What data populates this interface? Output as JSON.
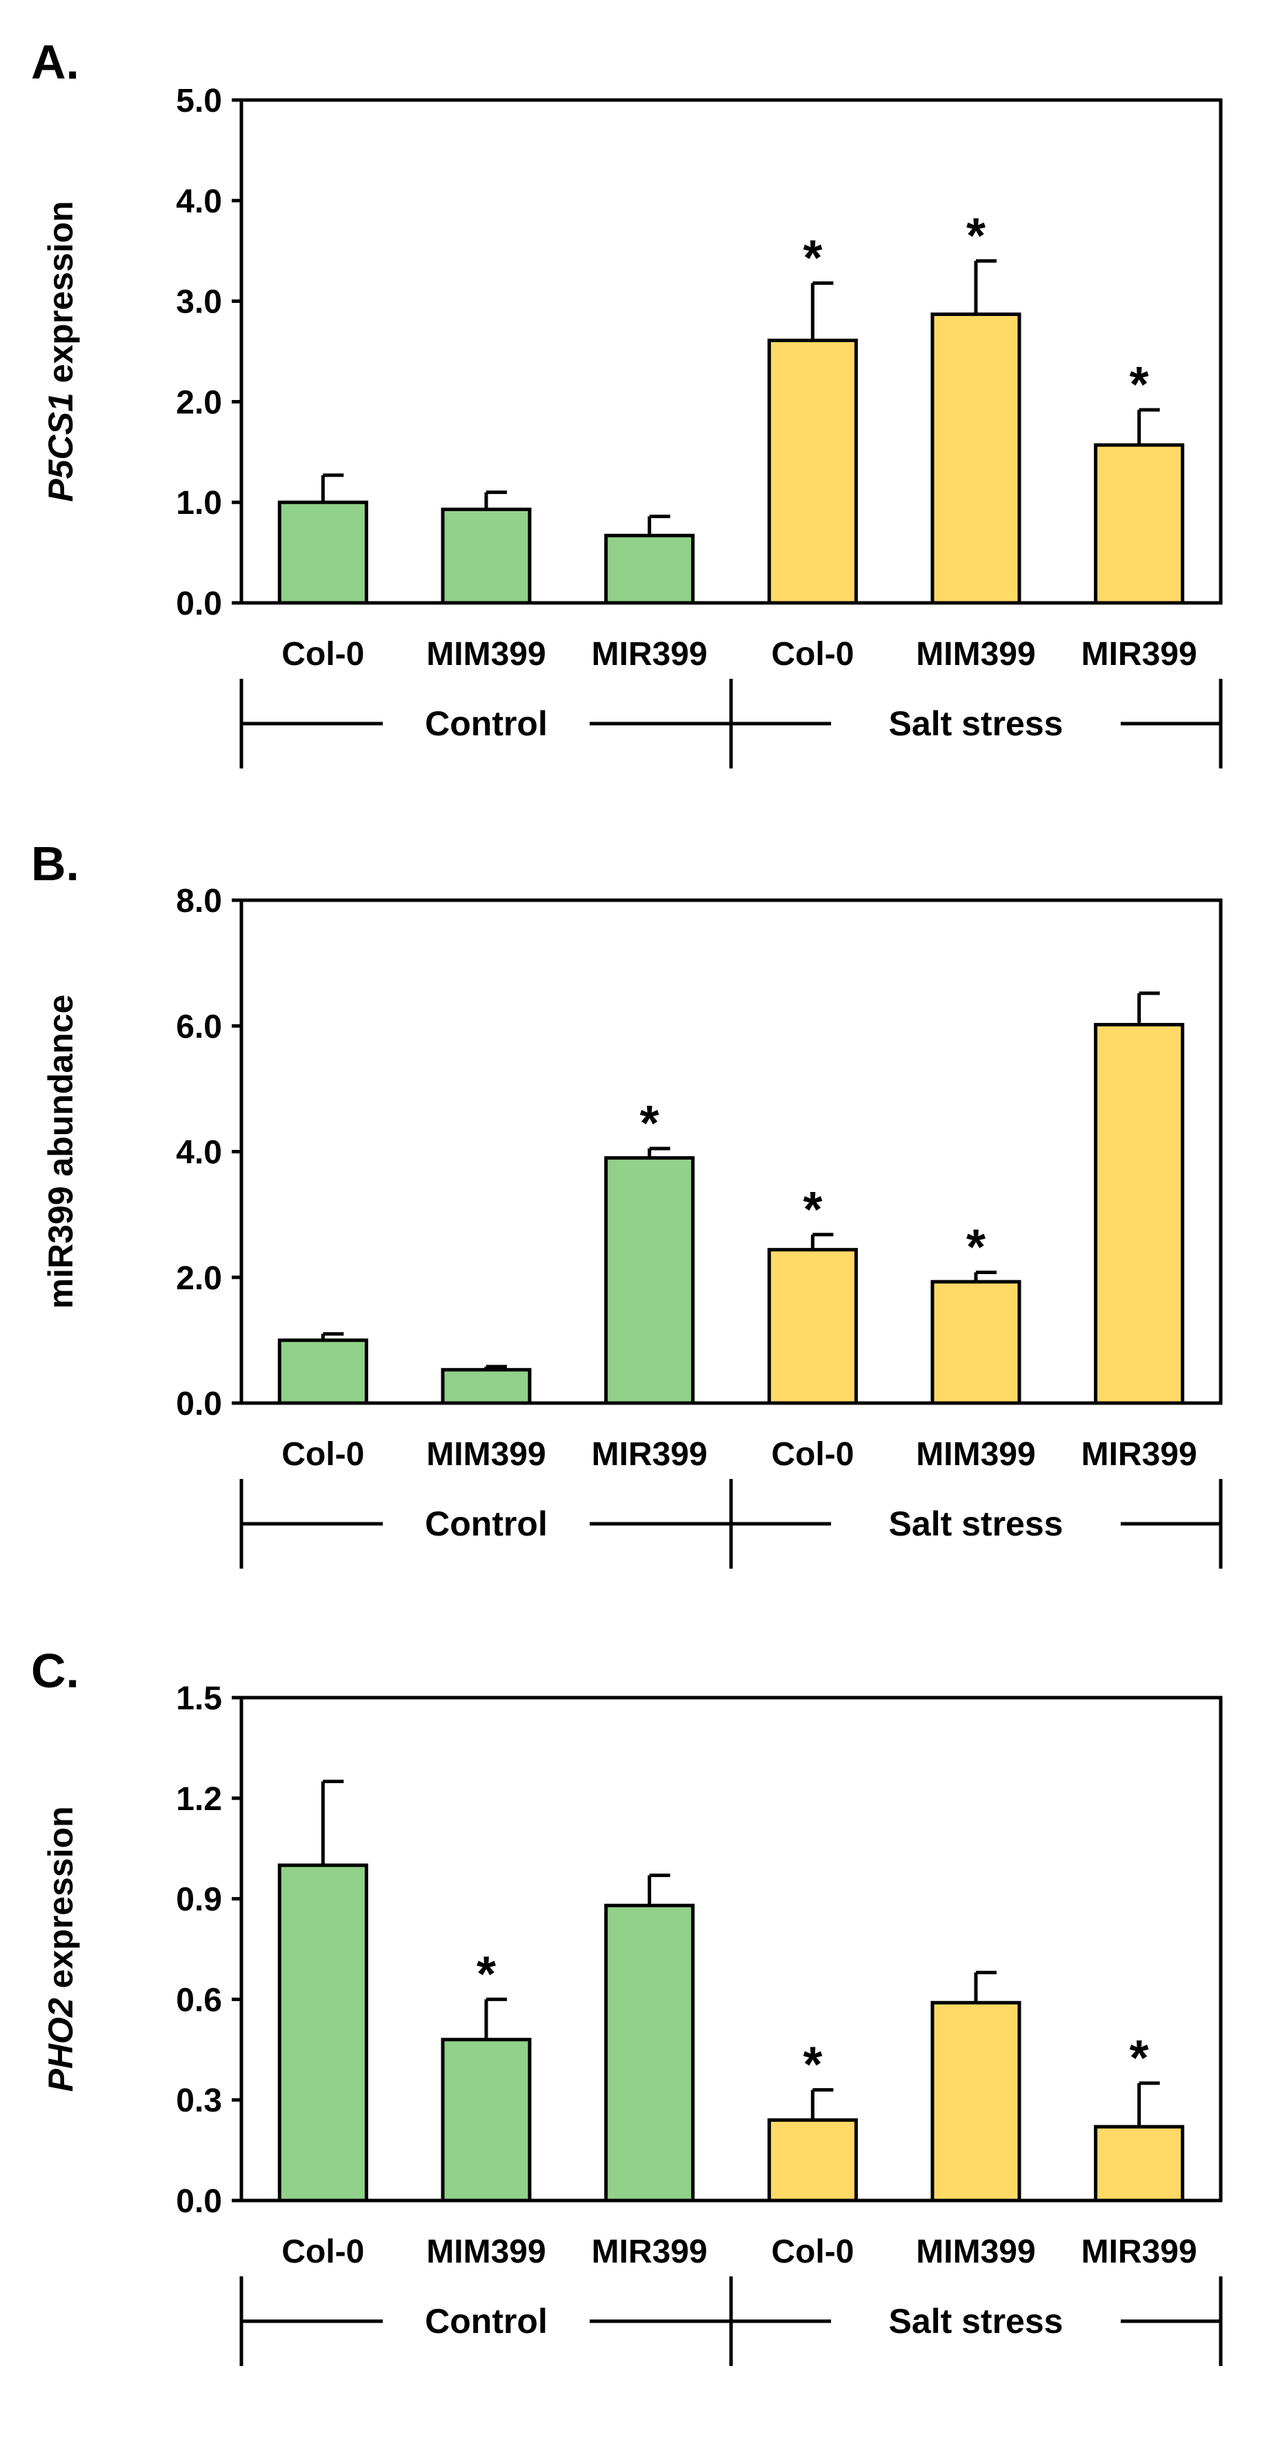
{
  "colors": {
    "control": "#92d18a",
    "salt": "#ffd966",
    "stroke": "#000000"
  },
  "chart_data": [
    {
      "type": "bar",
      "panel_label": "A.",
      "ylabel_italic": "P5CS1",
      "ylabel_rest": " expression",
      "ylim": [
        0,
        5.0
      ],
      "ytick_values": [
        0,
        1,
        2,
        3,
        4,
        5
      ],
      "ytick_labels": [
        "0.0",
        "1.0",
        "2.0",
        "3.0",
        "4.0",
        "5.0"
      ],
      "categories": [
        "Col-0",
        "MIM399",
        "MIR399",
        "Col-0",
        "MIM399",
        "MIR399"
      ],
      "groups": [
        "Control",
        "Control",
        "Control",
        "Salt stress",
        "Salt stress",
        "Salt stress"
      ],
      "values": [
        1.0,
        0.93,
        0.67,
        2.61,
        2.87,
        1.57
      ],
      "errors": [
        0.27,
        0.17,
        0.19,
        0.57,
        0.53,
        0.35
      ],
      "significant": [
        false,
        false,
        false,
        true,
        true,
        true
      ],
      "group_labels": [
        "Control",
        "Salt stress"
      ]
    },
    {
      "type": "bar",
      "panel_label": "B.",
      "ylabel_italic": "",
      "ylabel_rest": "miR399 abundance",
      "ylim": [
        0,
        8.0
      ],
      "ytick_values": [
        0,
        2,
        4,
        6,
        8
      ],
      "ytick_labels": [
        "0.0",
        "2.0",
        "4.0",
        "6.0",
        "8.0"
      ],
      "categories": [
        "Col-0",
        "MIM399",
        "MIR399",
        "Col-0",
        "MIM399",
        "MIR399"
      ],
      "groups": [
        "Control",
        "Control",
        "Control",
        "Salt stress",
        "Salt stress",
        "Salt stress"
      ],
      "values": [
        1.0,
        0.53,
        3.9,
        2.44,
        1.93,
        6.02
      ],
      "errors": [
        0.1,
        0.05,
        0.15,
        0.24,
        0.15,
        0.5
      ],
      "significant": [
        false,
        false,
        true,
        true,
        true,
        false
      ],
      "group_labels": [
        "Control",
        "Salt stress"
      ]
    },
    {
      "type": "bar",
      "panel_label": "C.",
      "ylabel_italic": "PHO2",
      "ylabel_rest": " expression",
      "ylim": [
        0,
        1.5
      ],
      "ytick_values": [
        0,
        0.3,
        0.6,
        0.9,
        1.2,
        1.5
      ],
      "ytick_labels": [
        "0.0",
        "0.3",
        "0.6",
        "0.9",
        "1.2",
        "1.5"
      ],
      "categories": [
        "Col-0",
        "MIM399",
        "MIR399",
        "Col-0",
        "MIM399",
        "MIR399"
      ],
      "groups": [
        "Control",
        "Control",
        "Control",
        "Salt stress",
        "Salt stress",
        "Salt stress"
      ],
      "values": [
        1.0,
        0.48,
        0.88,
        0.24,
        0.59,
        0.22
      ],
      "errors": [
        0.25,
        0.12,
        0.09,
        0.09,
        0.09,
        0.13
      ],
      "significant": [
        false,
        true,
        false,
        true,
        false,
        true
      ],
      "group_labels": [
        "Control",
        "Salt stress"
      ]
    }
  ],
  "star_symbol": "*"
}
